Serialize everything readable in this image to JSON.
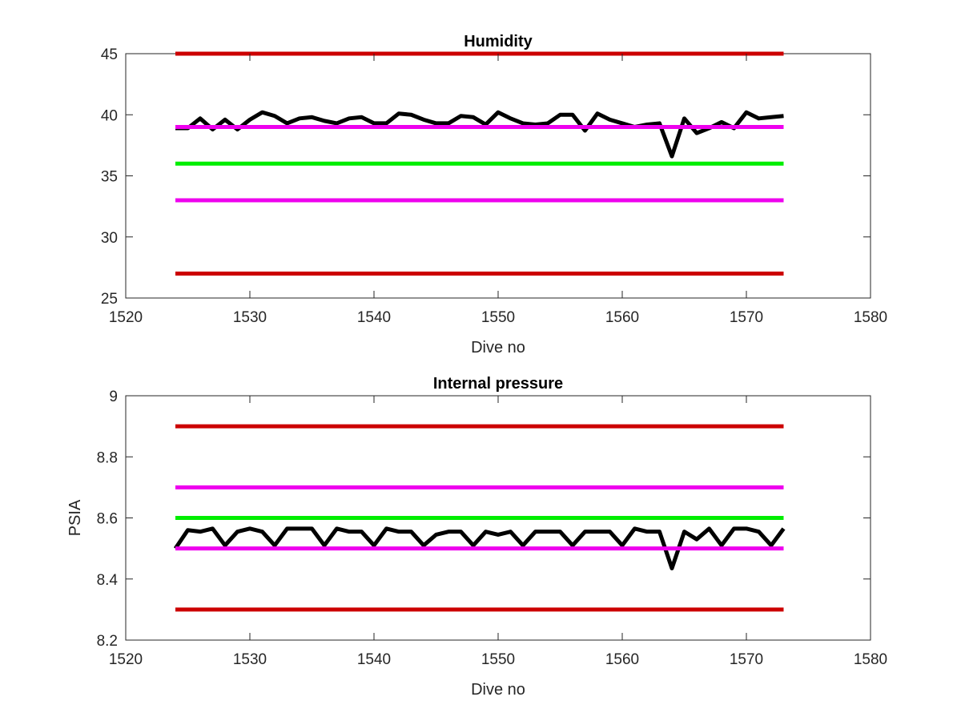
{
  "chart_data": [
    {
      "type": "line",
      "title": "Humidity",
      "xlabel": "Dive no",
      "ylabel": "",
      "xlim": [
        1520,
        1580
      ],
      "ylim": [
        25,
        45
      ],
      "xticks": [
        1520,
        1530,
        1540,
        1550,
        1560,
        1570,
        1580
      ],
      "yticks": [
        25,
        30,
        35,
        40,
        45
      ],
      "grid": false,
      "series": [
        {
          "color": "#000000",
          "x": [
            1524,
            1525,
            1526,
            1527,
            1528,
            1529,
            1530,
            1531,
            1532,
            1533,
            1534,
            1535,
            1536,
            1537,
            1538,
            1539,
            1540,
            1541,
            1542,
            1543,
            1544,
            1545,
            1546,
            1547,
            1548,
            1549,
            1550,
            1551,
            1552,
            1553,
            1554,
            1555,
            1556,
            1557,
            1558,
            1559,
            1560,
            1561,
            1562,
            1563,
            1564,
            1565,
            1566,
            1567,
            1568,
            1569,
            1570,
            1571,
            1572,
            1573
          ],
          "y": [
            38.9,
            38.9,
            39.7,
            38.8,
            39.6,
            38.8,
            39.6,
            40.2,
            39.9,
            39.3,
            39.7,
            39.8,
            39.5,
            39.3,
            39.7,
            39.8,
            39.3,
            39.3,
            40.1,
            40.0,
            39.6,
            39.3,
            39.3,
            39.9,
            39.8,
            39.2,
            40.2,
            39.7,
            39.3,
            39.2,
            39.3,
            40.0,
            40.0,
            38.7,
            40.1,
            39.6,
            39.3,
            39.0,
            39.2,
            39.3,
            36.6,
            39.7,
            38.5,
            38.9,
            39.4,
            38.9,
            40.2,
            39.7,
            39.8,
            39.9
          ]
        },
        {
          "color": "#cc0000",
          "x": [
            1524,
            1573
          ],
          "y": [
            45,
            45
          ]
        },
        {
          "color": "#ee00ee",
          "x": [
            1524,
            1573
          ],
          "y": [
            39,
            39
          ]
        },
        {
          "color": "#00ee00",
          "x": [
            1524,
            1573
          ],
          "y": [
            36,
            36
          ]
        },
        {
          "color": "#ee00ee",
          "x": [
            1524,
            1573
          ],
          "y": [
            33,
            33
          ]
        },
        {
          "color": "#cc0000",
          "x": [
            1524,
            1573
          ],
          "y": [
            27,
            27
          ]
        }
      ]
    },
    {
      "type": "line",
      "title": "Internal pressure",
      "xlabel": "Dive no",
      "ylabel": "PSIA",
      "xlim": [
        1520,
        1580
      ],
      "ylim": [
        8.2,
        9
      ],
      "xticks": [
        1520,
        1530,
        1540,
        1550,
        1560,
        1570,
        1580
      ],
      "yticks": [
        8.2,
        8.4,
        8.6,
        8.8,
        9
      ],
      "grid": false,
      "series": [
        {
          "color": "#000000",
          "x": [
            1524,
            1525,
            1526,
            1527,
            1528,
            1529,
            1530,
            1531,
            1532,
            1533,
            1534,
            1535,
            1536,
            1537,
            1538,
            1539,
            1540,
            1541,
            1542,
            1543,
            1544,
            1545,
            1546,
            1547,
            1548,
            1549,
            1550,
            1551,
            1552,
            1553,
            1554,
            1555,
            1556,
            1557,
            1558,
            1559,
            1560,
            1561,
            1562,
            1563,
            1564,
            1565,
            1566,
            1567,
            1568,
            1569,
            1570,
            1571,
            1572,
            1573
          ],
          "y": [
            8.5,
            8.56,
            8.555,
            8.565,
            8.51,
            8.555,
            8.565,
            8.555,
            8.51,
            8.565,
            8.565,
            8.565,
            8.51,
            8.565,
            8.555,
            8.555,
            8.51,
            8.565,
            8.555,
            8.555,
            8.51,
            8.545,
            8.555,
            8.555,
            8.51,
            8.555,
            8.545,
            8.555,
            8.51,
            8.555,
            8.555,
            8.555,
            8.51,
            8.555,
            8.555,
            8.555,
            8.51,
            8.565,
            8.555,
            8.555,
            8.435,
            8.555,
            8.53,
            8.565,
            8.51,
            8.565,
            8.565,
            8.555,
            8.51,
            8.565
          ]
        },
        {
          "color": "#cc0000",
          "x": [
            1524,
            1573
          ],
          "y": [
            8.9,
            8.9
          ]
        },
        {
          "color": "#ee00ee",
          "x": [
            1524,
            1573
          ],
          "y": [
            8.7,
            8.7
          ]
        },
        {
          "color": "#00ee00",
          "x": [
            1524,
            1573
          ],
          "y": [
            8.6,
            8.6
          ]
        },
        {
          "color": "#ee00ee",
          "x": [
            1524,
            1573
          ],
          "y": [
            8.5,
            8.5
          ]
        },
        {
          "color": "#cc0000",
          "x": [
            1524,
            1573
          ],
          "y": [
            8.3,
            8.3
          ]
        }
      ]
    }
  ]
}
